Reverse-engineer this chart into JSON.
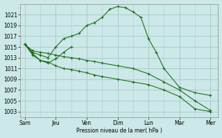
{
  "background_color": "#cce8e8",
  "grid_color": "#aacccc",
  "line_color": "#1a6e1a",
  "ylabel_text": "Pression niveau de la mer( hPa )",
  "x_labels": [
    "Sam",
    "Jeu",
    "Ven",
    "Dim",
    "Lun",
    "Mar",
    "Mer"
  ],
  "x_ticks": [
    0,
    2,
    4,
    6,
    8,
    10,
    12
  ],
  "ylim": [
    1002,
    1023
  ],
  "yticks": [
    1003,
    1005,
    1007,
    1009,
    1011,
    1013,
    1015,
    1017,
    1019,
    1021
  ],
  "line_A_x": [
    0,
    0.5,
    1.0,
    1.5,
    2.0,
    2.5,
    3.0,
    3.5,
    4.0,
    4.5,
    5.0,
    6.0,
    7.0,
    8.0,
    9.0,
    10.0,
    11.0,
    12.0
  ],
  "line_A_y": [
    1015.5,
    1014.3,
    1014.0,
    1013.8,
    1013.5,
    1013.2,
    1013.0,
    1012.8,
    1012.5,
    1012.3,
    1012.0,
    1011.5,
    1011.0,
    1010.0,
    1008.5,
    1007.0,
    1005.0,
    1003.2
  ],
  "line_B_x": [
    0,
    0.5,
    1.0,
    1.5,
    2.0,
    2.5,
    3.0,
    3.5,
    4.0,
    4.5,
    5.0,
    5.5,
    6.0,
    6.5,
    7.0,
    7.5,
    8.0,
    8.5,
    9.0,
    10.0,
    11.0,
    12.0
  ],
  "line_B_y": [
    1015.5,
    1014.0,
    1013.5,
    1013.0,
    1015.0,
    1016.5,
    1017.0,
    1017.5,
    1019.0,
    1019.5,
    1020.5,
    1022.0,
    1022.5,
    1022.3,
    1021.5,
    1020.5,
    1016.5,
    1014.0,
    1011.0,
    1007.5,
    1006.5,
    1006.0
  ],
  "line_C_x": [
    0,
    0.5,
    1.0,
    1.5,
    2.0,
    2.5,
    3.0
  ],
  "line_C_y": [
    1015.5,
    1013.5,
    1012.5,
    1012.0,
    1012.8,
    1014.0,
    1015.0
  ],
  "line_D_x": [
    0,
    0.5,
    1.0,
    1.5,
    2.0,
    2.5,
    3.0,
    3.5,
    4.0,
    4.5,
    5.0,
    6.0,
    7.0,
    8.0,
    9.0,
    10.0,
    11.0,
    12.0
  ],
  "line_D_y": [
    1015.5,
    1013.8,
    1012.5,
    1012.2,
    1011.5,
    1011.0,
    1010.8,
    1010.5,
    1010.2,
    1009.8,
    1009.5,
    1009.0,
    1008.5,
    1008.0,
    1007.0,
    1005.8,
    1003.5,
    1003.0
  ],
  "figsize": [
    3.2,
    2.0
  ],
  "dpi": 100
}
